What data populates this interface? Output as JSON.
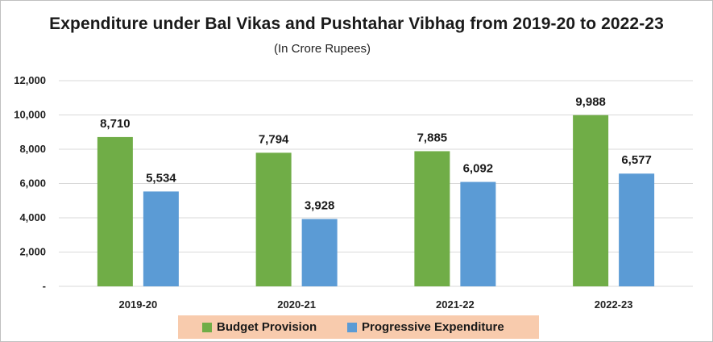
{
  "chart_data": {
    "type": "bar",
    "title": "Expenditure under Bal Vikas and Pushtahar Vibhag from 2019-20 to 2022-23",
    "subtitle": "(In Crore Rupees)",
    "categories": [
      "2019-20",
      "2020-21",
      "2021-22",
      "2022-23"
    ],
    "series": [
      {
        "name": "Budget Provision",
        "values": [
          8710,
          7794,
          7885,
          9988
        ],
        "labels": [
          "8,710",
          "7,794",
          "7,885",
          "9,988"
        ],
        "color": "#70ad47"
      },
      {
        "name": "Progressive Expenditure",
        "values": [
          5534,
          3928,
          6092,
          6577
        ],
        "labels": [
          "5,534",
          "3,928",
          "6,092",
          "6,577"
        ],
        "color": "#5b9bd5"
      }
    ],
    "ylim": [
      0,
      12000
    ],
    "yticks": [
      0,
      2000,
      4000,
      6000,
      8000,
      10000,
      12000
    ],
    "ytick_labels": [
      "-",
      "2,000",
      "4,000",
      "6,000",
      "8,000",
      "10,000",
      "12,000"
    ],
    "xlabel": "",
    "ylabel": "",
    "grid": true,
    "legend_position": "bottom"
  },
  "colors": {
    "gridline": "#d9d9d9",
    "legend_background": "#f8cbad"
  }
}
